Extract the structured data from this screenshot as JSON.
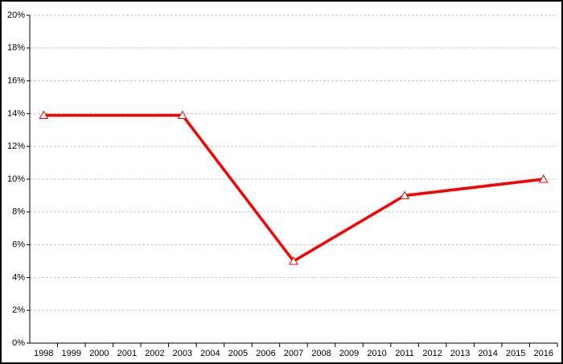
{
  "chart_data": {
    "type": "line",
    "x": [
      1998,
      2003,
      2007,
      2011,
      2016
    ],
    "series": [
      {
        "color": "#ff0000",
        "values": [
          13.9,
          13.9,
          5,
          9,
          10
        ]
      }
    ],
    "xlim": [
      1997.5,
      2016.5
    ],
    "xticks": [
      1998,
      1999,
      2000,
      2001,
      2002,
      2003,
      2004,
      2005,
      2006,
      2007,
      2008,
      2009,
      2010,
      2011,
      2012,
      2013,
      2014,
      2015,
      2016
    ],
    "ylim": [
      0,
      20
    ],
    "yticks": [
      {
        "value": 0,
        "label": "0%"
      },
      {
        "value": 2,
        "label": "2%"
      },
      {
        "value": 4,
        "label": "4%"
      },
      {
        "value": 6,
        "label": "6%"
      },
      {
        "value": 8,
        "label": "8%"
      },
      {
        "value": 10,
        "label": "10%"
      },
      {
        "value": 12,
        "label": "12%"
      },
      {
        "value": 14,
        "label": "14%"
      },
      {
        "value": 16,
        "label": "16%"
      },
      {
        "value": 18,
        "label": "18%"
      },
      {
        "value": 20,
        "label": "20%"
      }
    ],
    "grid": true
  }
}
